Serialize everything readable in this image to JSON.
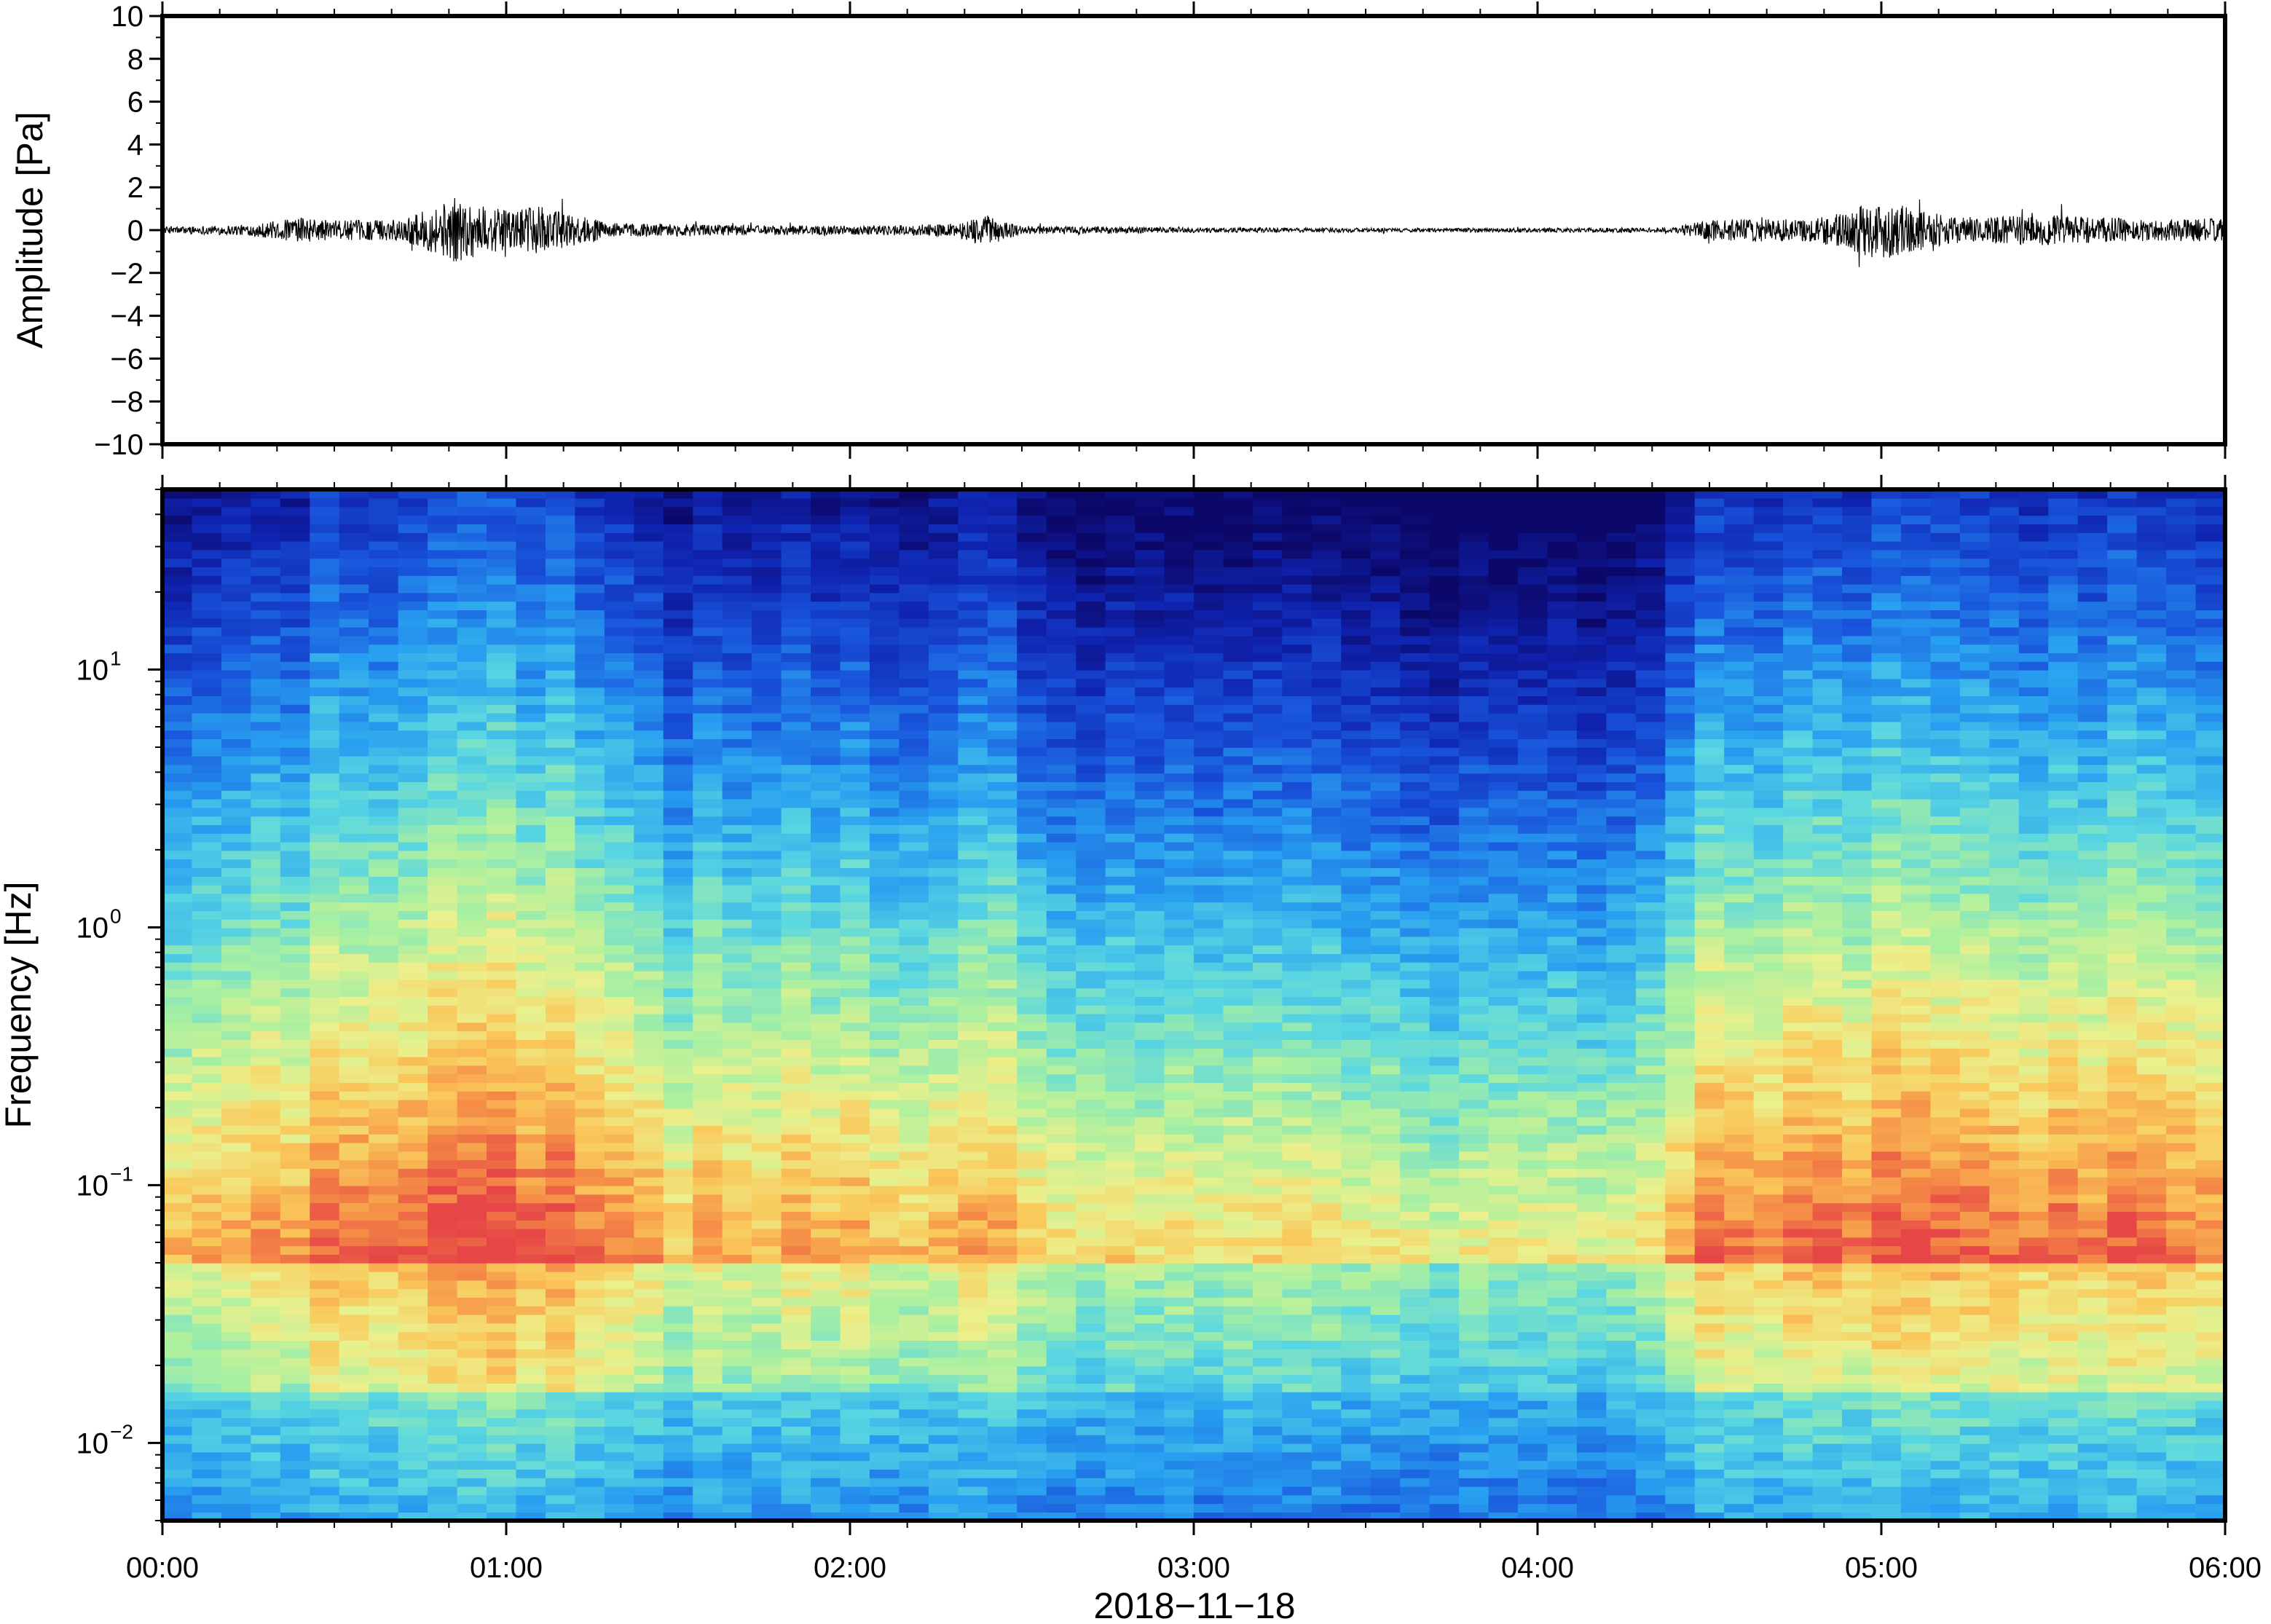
{
  "chart_data": [
    {
      "type": "line",
      "ylabel": "Amplitude [Pa]",
      "ylim": [
        -10,
        10
      ],
      "yticks": [
        -10,
        -8,
        -6,
        -4,
        -2,
        0,
        2,
        4,
        6,
        8,
        10
      ],
      "ytick_labels": [
        "−10",
        "−8",
        "−6",
        "−4",
        "−2",
        "0",
        "2",
        "4",
        "6",
        "8",
        "10"
      ],
      "xlim_hours": [
        0,
        6
      ],
      "series": [
        {
          "time_hours": [
            0.0,
            0.25,
            0.4,
            0.5,
            0.7,
            0.85,
            1.0,
            1.1,
            1.3,
            1.6,
            2.0,
            2.3,
            2.4,
            2.5,
            3.0,
            3.5,
            4.0,
            4.4,
            4.5,
            4.8,
            5.0,
            5.2,
            5.5,
            5.8,
            6.0
          ],
          "envelope_pa": [
            0.15,
            0.25,
            0.6,
            0.45,
            0.5,
            1.5,
            0.9,
            1.1,
            0.35,
            0.25,
            0.2,
            0.3,
            0.7,
            0.2,
            0.12,
            0.1,
            0.1,
            0.12,
            0.5,
            0.55,
            1.4,
            0.6,
            0.7,
            0.5,
            0.55
          ]
        }
      ]
    },
    {
      "type": "heatmap",
      "ylabel": "Frequency [Hz]",
      "yscale": "log",
      "ylim": [
        0.005,
        50
      ],
      "ytick_exponents": [
        "1",
        "0",
        "−1",
        "−2"
      ],
      "ytick_base": "10",
      "xlabel": "2018−11−18",
      "xtick_labels": [
        "00:00",
        "01:00",
        "02:00",
        "03:00",
        "04:00",
        "05:00",
        "06:00"
      ],
      "xlim_hours": [
        0,
        6
      ],
      "colormap": "rainbow (blue = low power, red = high power)",
      "activity_profile": {
        "time_hours": [
          0.0,
          0.3,
          0.5,
          0.8,
          0.9,
          1.1,
          1.3,
          1.5,
          1.7,
          2.0,
          2.3,
          2.4,
          2.5,
          2.8,
          3.2,
          3.6,
          4.0,
          4.3,
          4.5,
          4.8,
          5.0,
          5.3,
          5.6,
          6.0
        ],
        "level": [
          0.5,
          0.55,
          0.75,
          0.8,
          0.9,
          0.85,
          0.7,
          0.45,
          0.55,
          0.5,
          0.45,
          0.75,
          0.35,
          0.3,
          0.3,
          0.2,
          0.2,
          0.2,
          0.7,
          0.75,
          0.8,
          0.7,
          0.75,
          0.7
        ]
      }
    }
  ],
  "colors": {
    "background": "#ffffff",
    "frame": "#000000",
    "waveform": "#000000"
  }
}
